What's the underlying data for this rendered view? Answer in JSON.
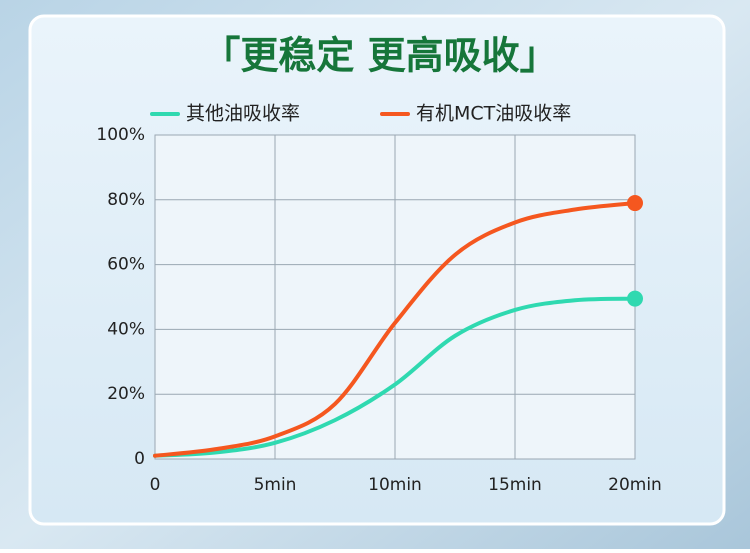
{
  "chart_data": {
    "type": "line",
    "title": "「更稳定 更高吸收」",
    "x": [
      0,
      2.5,
      5,
      7.5,
      10,
      12.5,
      15,
      17.5,
      20
    ],
    "series": [
      {
        "name": "其他油吸收率",
        "color": "#2fd9b0",
        "values": [
          1,
          2,
          5,
          12,
          23,
          38,
          46,
          49,
          49.5
        ]
      },
      {
        "name": "有机MCT油吸收率",
        "color": "#f5571f",
        "values": [
          1,
          3,
          7,
          17,
          42,
          63,
          73,
          77,
          79
        ]
      }
    ],
    "xlim": [
      0,
      20
    ],
    "xticks": [
      0,
      {
        "value": 5,
        "label": "5min"
      },
      {
        "value": 10,
        "label": "10min"
      },
      {
        "value": 15,
        "label": "15min"
      },
      {
        "value": 20,
        "label": "20min"
      }
    ],
    "ylim": [
      0,
      100
    ],
    "yticks": [
      0,
      {
        "value": 20,
        "label": "20%"
      },
      {
        "value": 40,
        "label": "40%"
      },
      {
        "value": 60,
        "label": "60%"
      },
      {
        "value": 80,
        "label": "80%"
      },
      {
        "value": 100,
        "label": "100%"
      }
    ],
    "grid": true,
    "legend": "top"
  }
}
